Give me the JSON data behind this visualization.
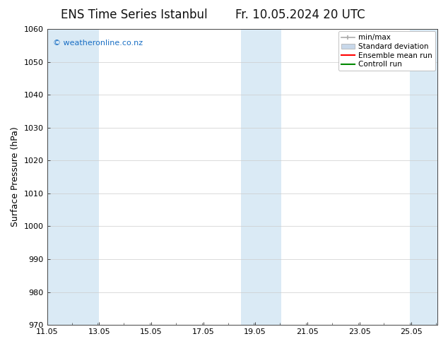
{
  "title_left": "ENS Time Series Istanbul",
  "title_right": "Fr. 10.05.2024 20 UTC",
  "ylabel": "Surface Pressure (hPa)",
  "ylim": [
    970,
    1060
  ],
  "yticks": [
    970,
    980,
    990,
    1000,
    1010,
    1020,
    1030,
    1040,
    1050,
    1060
  ],
  "xlim_start": 11.05,
  "xlim_end": 26.05,
  "xtick_labels": [
    "11.05",
    "13.05",
    "15.05",
    "17.05",
    "19.05",
    "21.05",
    "23.05",
    "25.05"
  ],
  "xtick_positions": [
    11.05,
    13.05,
    15.05,
    17.05,
    19.05,
    21.05,
    23.05,
    25.05
  ],
  "watermark": "© weatheronline.co.nz",
  "watermark_color": "#1a6fc4",
  "bg_color": "#ffffff",
  "plot_bg_color": "#ffffff",
  "shaded_bands": [
    {
      "x_start": 11.05,
      "x_end": 13.05
    },
    {
      "x_start": 18.5,
      "x_end": 20.05
    },
    {
      "x_start": 25.0,
      "x_end": 26.05
    }
  ],
  "shaded_color": "#daeaf5",
  "legend_items": [
    {
      "label": "min/max",
      "color": "#aaaaaa",
      "lw": 1.5,
      "style": "minmax"
    },
    {
      "label": "Standard deviation",
      "color": "#c8d8ea",
      "lw": 6,
      "style": "fill"
    },
    {
      "label": "Ensemble mean run",
      "color": "#ff0000",
      "lw": 1.5,
      "style": "line"
    },
    {
      "label": "Controll run",
      "color": "#008800",
      "lw": 1.5,
      "style": "line"
    }
  ],
  "font_family": "DejaVu Sans",
  "title_fontsize": 12,
  "axis_fontsize": 9,
  "tick_fontsize": 8,
  "legend_fontsize": 7.5
}
